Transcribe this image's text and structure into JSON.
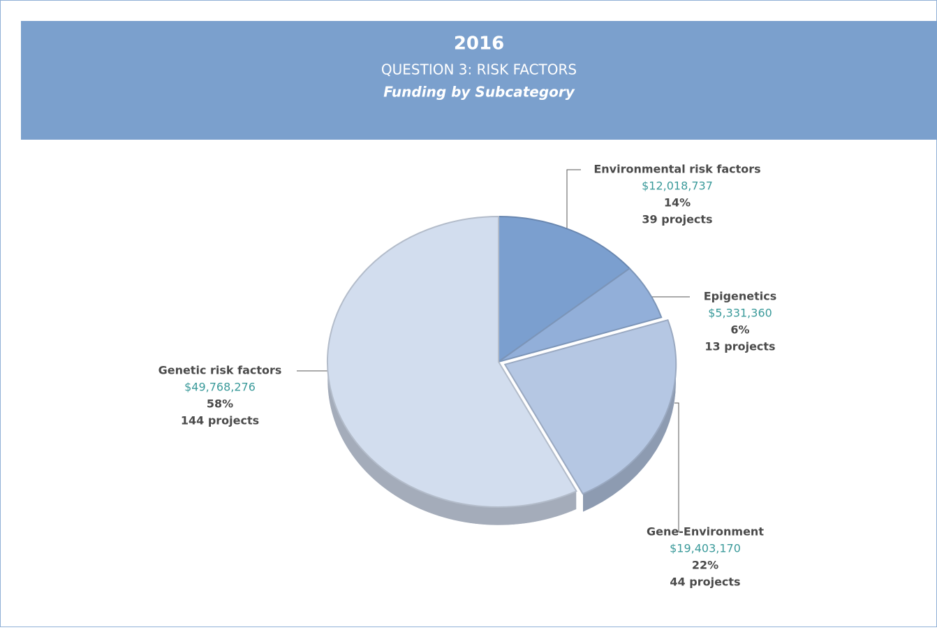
{
  "chart_data": {
    "type": "pie",
    "title": "2016",
    "subtitle": "QUESTION 3: RISK FACTORS",
    "caption": "Funding by Subcategory",
    "categories": [
      "Environmental risk factors",
      "Epigenetics",
      "Gene-Environment",
      "Genetic risk factors"
    ],
    "values": [
      12018737,
      5331360,
      19403170,
      49768276
    ],
    "value_labels": [
      "$12,018,737",
      "$5,331,360",
      "$19,403,170",
      "$49,768,276"
    ],
    "percents": [
      14,
      6,
      22,
      58
    ],
    "percent_labels": [
      "14%",
      "6%",
      "22%",
      "58%"
    ],
    "projects": [
      39,
      13,
      44,
      144
    ],
    "project_labels": [
      "39 projects",
      "13 projects",
      "44 projects",
      "144 projects"
    ],
    "colors": [
      "#7b9fcf",
      "#92afd9",
      "#b5c7e3",
      "#d2ddee"
    ]
  }
}
